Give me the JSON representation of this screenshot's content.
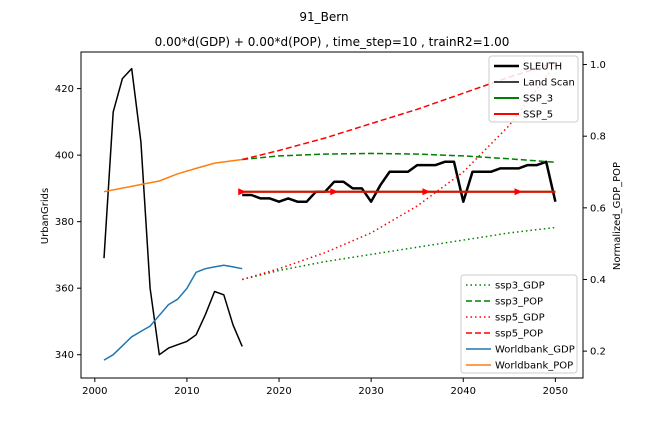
{
  "figure": {
    "suptitle": "91_Bern",
    "title": "0.00*d(GDP) + 0.00*d(POP) , time_step=10 , trainR2=1.00"
  },
  "chart_data": {
    "type": "line",
    "title": "0.00*d(GDP) + 0.00*d(POP) , time_step=10 , trainR2=1.00",
    "xlabel": "",
    "xlim": [
      1998.5,
      2053
    ],
    "xticks": [
      2000,
      2010,
      2020,
      2030,
      2040,
      2050
    ],
    "grid": false,
    "left_axis": {
      "ylabel": "UrbanGrids",
      "ylim": [
        333,
        431
      ],
      "yticks": [
        340,
        360,
        380,
        400,
        420
      ]
    },
    "right_axis": {
      "ylabel": "Normalized_GDP_POP",
      "ylim": [
        0.125,
        1.035
      ],
      "yticks": [
        0.2,
        0.4,
        0.6,
        0.8,
        1.0
      ]
    },
    "legend_left_axis": "upper right",
    "legend_right_axis": "lower right",
    "series": [
      {
        "name": "SLEUTH",
        "axis": "left",
        "color": "#000000",
        "style": "solid",
        "width": 2.5,
        "x": [
          2016,
          2017,
          2018,
          2019,
          2020,
          2021,
          2022,
          2023,
          2024,
          2025,
          2026,
          2027,
          2028,
          2029,
          2030,
          2031,
          2032,
          2033,
          2034,
          2035,
          2036,
          2037,
          2038,
          2039,
          2040,
          2041,
          2042,
          2043,
          2044,
          2045,
          2046,
          2047,
          2048,
          2049,
          2050
        ],
        "y": [
          388,
          388,
          387,
          387,
          386,
          387,
          386,
          386,
          389,
          389,
          392,
          392,
          390,
          390,
          386,
          391,
          395,
          395,
          395,
          397,
          397,
          397,
          398,
          398,
          386,
          395,
          395,
          395,
          396,
          396,
          396,
          397,
          397,
          398,
          386
        ]
      },
      {
        "name": "Land Scan",
        "axis": "left",
        "color": "#000000",
        "style": "solid",
        "width": 1.5,
        "x": [
          2001,
          2002,
          2003,
          2004,
          2005,
          2006,
          2007,
          2008,
          2009,
          2010,
          2011,
          2012,
          2013,
          2014,
          2015,
          2016
        ],
        "y": [
          369,
          413,
          423,
          426,
          404,
          360,
          340,
          342,
          343,
          344,
          346,
          352,
          359,
          358,
          349,
          342.5
        ]
      },
      {
        "name": "SSP_3",
        "axis": "left",
        "color": "#008000",
        "style": "solid",
        "width": 2,
        "x": [
          2016,
          2050
        ],
        "y": [
          389,
          389
        ]
      },
      {
        "name": "SSP_5",
        "axis": "left",
        "color": "#ff0000",
        "style": "solid",
        "width": 2,
        "x": [
          2016,
          2050
        ],
        "y": [
          389,
          389
        ],
        "markers_x": [
          2016,
          2026,
          2036,
          2046
        ]
      },
      {
        "name": "ssp3_GDP",
        "axis": "right",
        "color": "#008000",
        "style": "dotted",
        "width": 1.5,
        "x": [
          2016,
          2020,
          2025,
          2030,
          2035,
          2040,
          2045,
          2050
        ],
        "y": [
          0.4,
          0.425,
          0.45,
          0.47,
          0.49,
          0.51,
          0.53,
          0.545
        ]
      },
      {
        "name": "ssp3_POP",
        "axis": "right",
        "color": "#008000",
        "style": "dashed",
        "width": 1.5,
        "x": [
          2016,
          2020,
          2025,
          2030,
          2035,
          2040,
          2045,
          2050
        ],
        "y": [
          0.735,
          0.745,
          0.75,
          0.752,
          0.75,
          0.745,
          0.737,
          0.727
        ]
      },
      {
        "name": "ssp5_GDP",
        "axis": "right",
        "color": "#ff0000",
        "style": "dotted",
        "width": 1.5,
        "x": [
          2016,
          2020,
          2025,
          2030,
          2035,
          2040,
          2045,
          2050
        ],
        "y": [
          0.4,
          0.43,
          0.475,
          0.53,
          0.605,
          0.7,
          0.83,
          1.0
        ]
      },
      {
        "name": "ssp5_POP",
        "axis": "right",
        "color": "#ff0000",
        "style": "dashed",
        "width": 1.5,
        "x": [
          2016,
          2020,
          2025,
          2030,
          2035,
          2040,
          2045,
          2050
        ],
        "y": [
          0.735,
          0.76,
          0.795,
          0.835,
          0.875,
          0.92,
          0.965,
          1.005
        ]
      },
      {
        "name": "Worldbank_GDP",
        "axis": "right",
        "color": "#1f77b4",
        "style": "solid",
        "width": 1.5,
        "x": [
          2001,
          2002,
          2003,
          2004,
          2005,
          2006,
          2007,
          2008,
          2009,
          2010,
          2011,
          2012,
          2013,
          2014,
          2015,
          2016
        ],
        "y": [
          0.175,
          0.19,
          0.215,
          0.24,
          0.255,
          0.27,
          0.3,
          0.33,
          0.345,
          0.375,
          0.42,
          0.43,
          0.435,
          0.44,
          0.435,
          0.43
        ]
      },
      {
        "name": "Worldbank_POP",
        "axis": "right",
        "color": "#ff7f0e",
        "style": "solid",
        "width": 1.5,
        "x": [
          2001,
          2003,
          2005,
          2007,
          2009,
          2011,
          2013,
          2016
        ],
        "y": [
          0.645,
          0.655,
          0.665,
          0.675,
          0.695,
          0.71,
          0.725,
          0.735
        ]
      }
    ]
  }
}
